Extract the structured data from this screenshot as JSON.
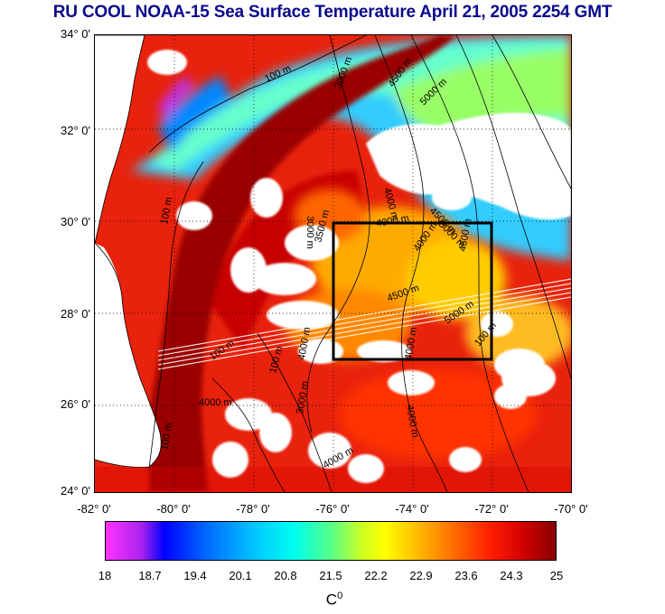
{
  "title": "RU COOL  NOAA-15 Sea Surface Temperature April 21, 2005 2254 GMT",
  "map": {
    "lat_labels": [
      "34° 0'",
      "32° 0'",
      "30° 0'",
      "28° 0'",
      "26° 0'",
      "24° 0'"
    ],
    "lon_labels": [
      "-82° 0'",
      "-80° 0'",
      "-78° 0'",
      "-76° 0'",
      "-74° 0'",
      "-72° 0'",
      "-70° 0'"
    ],
    "lat_range": [
      24,
      34
    ],
    "lon_range": [
      -82,
      -70
    ],
    "study_box": {
      "lon": [
        -76,
        -72
      ],
      "lat": [
        27,
        30
      ]
    },
    "contour_labels": [
      "100 m",
      "3000 m",
      "4500 m",
      "5000 m",
      "4000 m",
      "3000 m",
      "3500 m",
      "4000 m",
      "4500 m",
      "4000 m",
      "5000 m",
      "4500 m",
      "4500 m",
      "5000 m",
      "4000 m",
      "100 m",
      "100 m",
      "100 m",
      "4000 m",
      "4000 m",
      "100 m",
      "100 m",
      "3000 m",
      "4000 m",
      "4000 m"
    ]
  },
  "colorbar": {
    "tick_labels": [
      "18",
      "18.7",
      "19.4",
      "20.1",
      "20.8",
      "21.5",
      "22.2",
      "22.9",
      "23.6",
      "24.3",
      "25"
    ],
    "unit": "C",
    "unit_superscript": "0"
  },
  "colors": {
    "title": "#0a0a8c",
    "warm_water": "#8b0000",
    "cool_water": "#00ccff",
    "cloud": "#ffffff",
    "box": "#000000"
  }
}
